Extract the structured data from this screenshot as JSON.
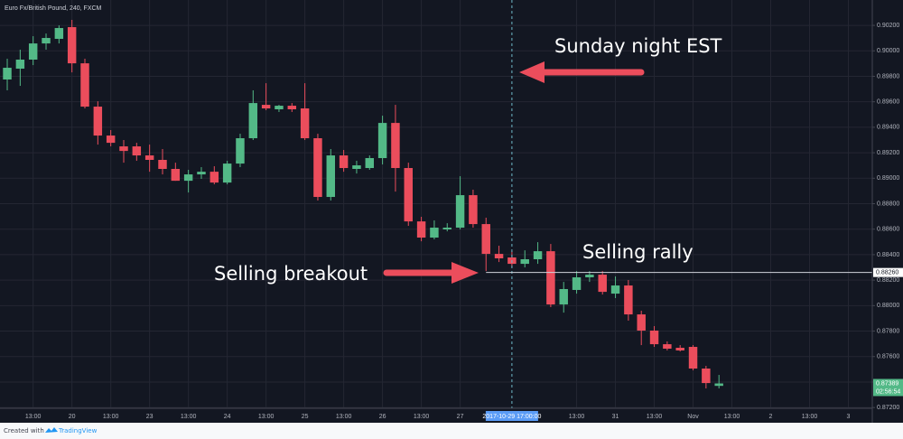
{
  "chart_data": {
    "type": "candlestick",
    "title": "Euro Fx/British Pound, 240, FXCM",
    "up_color": "#53b987",
    "down_color": "#eb4d5c",
    "open": [
      0.89775,
      0.8986,
      0.89931,
      0.90058,
      0.90094,
      0.90186,
      0.89902,
      0.89562,
      0.89335,
      0.8925,
      0.8925,
      0.89179,
      0.89144,
      0.89073,
      0.8898,
      0.8903,
      0.89051,
      0.88966,
      0.89115,
      0.89314,
      0.89576,
      0.89541,
      0.89569,
      0.89548,
      0.89314,
      0.88853,
      0.89179,
      0.89073,
      0.8908,
      0.89158,
      0.89434,
      0.8908,
      0.88661,
      0.88534,
      0.88598,
      0.88612,
      0.88867,
      0.8864,
      0.88406,
      0.88378,
      0.88328,
      0.88364,
      0.88427,
      0.88009,
      0.88123,
      0.88222,
      0.88243,
      0.88094,
      0.88158,
      0.87931,
      0.87804,
      0.87697,
      0.87669,
      0.87676,
      0.87506,
      0.8737
    ],
    "high": [
      0.89938,
      0.90009,
      0.90115,
      0.90136,
      0.902,
      0.90243,
      0.89938,
      0.89604,
      0.89378,
      0.893,
      0.89278,
      0.89264,
      0.89229,
      0.89122,
      0.89066,
      0.89087,
      0.89094,
      0.89137,
      0.89349,
      0.8969,
      0.89746,
      0.89576,
      0.8959,
      0.89746,
      0.89349,
      0.89229,
      0.89222,
      0.89137,
      0.89179,
      0.89491,
      0.89576,
      0.89122,
      0.88697,
      0.88669,
      0.88647,
      0.89016,
      0.8891,
      0.8869,
      0.8847,
      0.88427,
      0.88434,
      0.88498,
      0.88484,
      0.88186,
      0.88271,
      0.88271,
      0.88271,
      0.88229,
      0.88201,
      0.8796,
      0.87839,
      0.87719,
      0.8769,
      0.8769,
      0.87527,
      0.87456
    ],
    "low": [
      0.8969,
      0.89725,
      0.89888,
      0.90009,
      0.90058,
      0.89831,
      0.89548,
      0.89264,
      0.8925,
      0.89122,
      0.89137,
      0.89051,
      0.8903,
      0.8898,
      0.88888,
      0.88995,
      0.88952,
      0.88952,
      0.89087,
      0.893,
      0.89534,
      0.8952,
      0.8952,
      0.893,
      0.88825,
      0.88825,
      0.89051,
      0.89037,
      0.89066,
      0.89108,
      0.88895,
      0.88626,
      0.88505,
      0.8852,
      0.88583,
      0.88598,
      0.88612,
      0.88271,
      0.88342,
      0.883,
      0.883,
      0.88328,
      0.87988,
      0.87945,
      0.88094,
      0.88186,
      0.88087,
      0.88059,
      0.87882,
      0.8769,
      0.87676,
      0.87648,
      0.8764,
      0.87492,
      0.8735,
      0.8735
    ],
    "close": [
      0.89867,
      0.89931,
      0.90058,
      0.90101,
      0.90179,
      0.89902,
      0.89562,
      0.89335,
      0.89278,
      0.89214,
      0.89179,
      0.89144,
      0.89073,
      0.8898,
      0.8903,
      0.89051,
      0.88966,
      0.89115,
      0.89314,
      0.8959,
      0.89548,
      0.89569,
      0.89541,
      0.89314,
      0.88853,
      0.89179,
      0.8908,
      0.89101,
      0.89158,
      0.89434,
      0.8908,
      0.88661,
      0.88534,
      0.88612,
      0.88612,
      0.88867,
      0.8864,
      0.88406,
      0.88371,
      0.88328,
      0.88364,
      0.88427,
      0.88009,
      0.8813,
      0.88222,
      0.88243,
      0.88108,
      0.88158,
      0.87931,
      0.87804,
      0.87697,
      0.87662,
      0.87648,
      0.87506,
      0.87392,
      0.87389
    ],
    "xlim": [
      -0.56,
      66.85
    ],
    "xticks": [
      {
        "value": 2,
        "label": "13:00"
      },
      {
        "value": 5,
        "label": "20"
      },
      {
        "value": 8,
        "label": "13:00"
      },
      {
        "value": 11,
        "label": "23"
      },
      {
        "value": 14,
        "label": "13:00"
      },
      {
        "value": 17,
        "label": "24"
      },
      {
        "value": 20,
        "label": "13:00"
      },
      {
        "value": 23,
        "label": "25"
      },
      {
        "value": 26,
        "label": "13:00"
      },
      {
        "value": 29,
        "label": "26"
      },
      {
        "value": 32,
        "label": "13:00"
      },
      {
        "value": 35,
        "label": "27"
      },
      {
        "value": 44,
        "label": "13:00"
      },
      {
        "value": 47,
        "label": "31"
      },
      {
        "value": 50,
        "label": "13:00"
      },
      {
        "value": 53,
        "label": "Nov"
      },
      {
        "value": 56,
        "label": "13:00"
      },
      {
        "value": 59,
        "label": "2"
      },
      {
        "value": 62,
        "label": "13:00"
      },
      {
        "value": 65,
        "label": "3"
      }
    ],
    "ylim": [
      0.87194,
      0.90399
    ],
    "yticks": [
      {
        "value": 0.872,
        "label": "0.87200"
      },
      {
        "value": 0.874,
        "label": "0.87400"
      },
      {
        "value": 0.876,
        "label": "0.87600"
      },
      {
        "value": 0.878,
        "label": "0.87800"
      },
      {
        "value": 0.88,
        "label": "0.88000"
      },
      {
        "value": 0.882,
        "label": "0.88200"
      },
      {
        "value": 0.884,
        "label": "0.88400"
      },
      {
        "value": 0.886,
        "label": "0.88600"
      },
      {
        "value": 0.888,
        "label": "0.88800"
      },
      {
        "value": 0.89,
        "label": "0.89000"
      },
      {
        "value": 0.892,
        "label": "0.89200"
      },
      {
        "value": 0.894,
        "label": "0.89400"
      },
      {
        "value": 0.896,
        "label": "0.89600"
      },
      {
        "value": 0.898,
        "label": "0.89800"
      },
      {
        "value": 0.9,
        "label": "0.90000"
      },
      {
        "value": 0.902,
        "label": "0.90200"
      }
    ],
    "grid": true,
    "crosshair": {
      "value": 39,
      "label": "2017-10-29 17:00:00"
    },
    "level": {
      "start": 37,
      "value": 0.8826,
      "value_label": "0.88260"
    },
    "countdown": "02:56:54",
    "annotations": [
      "Sunday night EST",
      "Selling breakout",
      "Selling rally"
    ],
    "footer": {
      "text": "Created with",
      "brand": "TradingView"
    }
  }
}
